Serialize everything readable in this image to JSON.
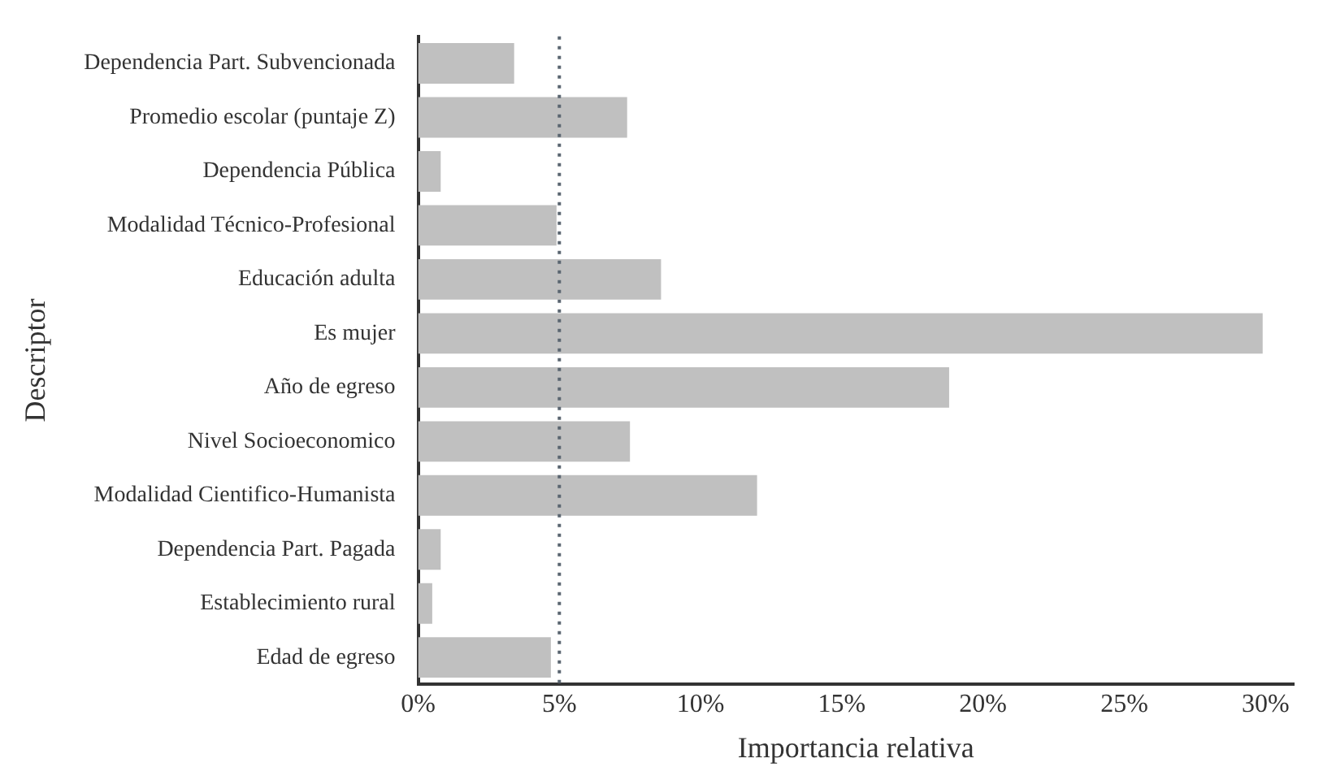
{
  "chart_data": {
    "type": "bar",
    "orientation": "horizontal",
    "xlabel": "Importancia relativa",
    "ylabel": "Descriptor",
    "categories": [
      "Dependencia Part. Subvencionada",
      "Promedio escolar (puntaje Z)",
      "Dependencia Pública",
      "Modalidad Técnico-Profesional",
      "Educación adulta",
      "Es mujer",
      "Año de egreso",
      "Nivel Socioeconomico",
      "Modalidad Cientifico-Humanista",
      "Dependencia Part. Pagada",
      "Establecimiento rural",
      "Edad de egreso"
    ],
    "values": [
      3.4,
      7.4,
      0.8,
      4.9,
      8.6,
      29.9,
      18.8,
      7.5,
      12.0,
      0.8,
      0.5,
      4.7
    ],
    "color": "#c0c0c0",
    "xlim": [
      0,
      31
    ],
    "xticks": [
      {
        "value": 0,
        "label": "0%"
      },
      {
        "value": 5,
        "label": "5%"
      },
      {
        "value": 10,
        "label": "10%"
      },
      {
        "value": 15,
        "label": "15%"
      },
      {
        "value": 20,
        "label": "20%"
      },
      {
        "value": 25,
        "label": "25%"
      },
      {
        "value": 30,
        "label": "30%"
      }
    ],
    "ref_lines": [
      {
        "axis": "x",
        "value": 5,
        "color": "#5a6570",
        "line_style": "dotted"
      }
    ],
    "grid": false,
    "legend": false
  }
}
